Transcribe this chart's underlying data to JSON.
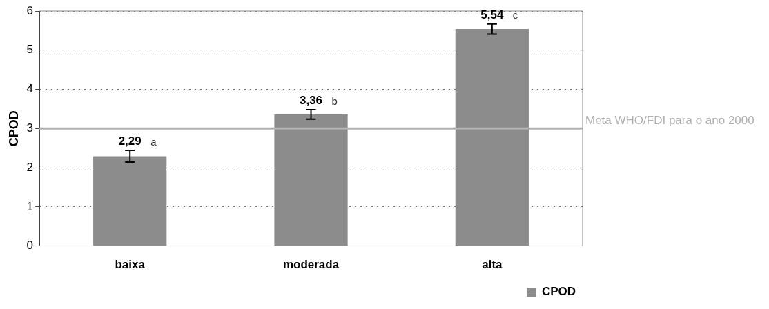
{
  "chart_data": {
    "type": "bar",
    "ylabel": "CPOD",
    "categories": [
      "baixa",
      "moderada",
      "alta"
    ],
    "series": [
      {
        "name": "CPOD",
        "color": "#8c8c8c",
        "values": [
          2.29,
          3.36,
          5.54
        ],
        "errors": [
          0.15,
          0.12,
          0.13
        ],
        "value_labels": [
          "2,29",
          "3,36",
          "5,54"
        ]
      }
    ],
    "ylim": [
      0,
      6
    ],
    "yticks": [
      0,
      1,
      2,
      3,
      4,
      5,
      6
    ],
    "grid": "y",
    "legend": "bottom right",
    "ref_lines": [
      {
        "axis": "y",
        "value": 3,
        "label": "Meta WHO/FDI para o ano 2000",
        "color": "#b0b0b0"
      }
    ],
    "annotations": [
      {
        "text": "a",
        "x": "baixa",
        "y": 2.29
      },
      {
        "text": "b",
        "x": "moderada",
        "y": 3.36
      },
      {
        "text": "c",
        "x": "alta",
        "y": 5.54
      }
    ]
  }
}
